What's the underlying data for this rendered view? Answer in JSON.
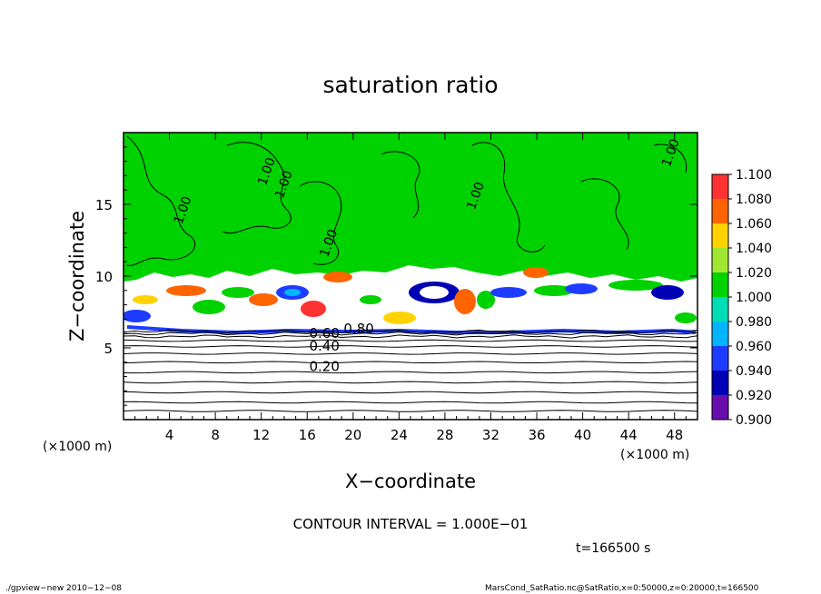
{
  "chart_data": {
    "type": "heatmap",
    "title": "saturation ratio",
    "xlabel": "X−coordinate",
    "ylabel": "Z−coordinate",
    "x_units": "(×1000 m)",
    "z_units": "(×1000 m)",
    "xlim": [
      0,
      50
    ],
    "ylim": [
      0,
      20
    ],
    "x_ticks": [
      4,
      8,
      12,
      16,
      20,
      24,
      28,
      32,
      36,
      40,
      44,
      48
    ],
    "y_ticks": [
      5,
      10,
      15
    ],
    "x_tick_labels": [
      "4",
      "8",
      "12",
      "16",
      "20",
      "24",
      "28",
      "32",
      "36",
      "40",
      "44",
      "48"
    ],
    "y_tick_labels": [
      "5",
      "10",
      "15"
    ],
    "colorbar": {
      "levels": [
        0.9,
        0.92,
        0.94,
        0.96,
        0.98,
        1.0,
        1.02,
        1.04,
        1.06,
        1.08,
        1.1
      ],
      "tick_labels": [
        "0.900",
        "0.920",
        "0.940",
        "0.960",
        "0.980",
        "1.000",
        "1.020",
        "1.040",
        "1.060",
        "1.080",
        "1.100"
      ],
      "colors": [
        "#6a0dad",
        "#0000b4",
        "#1e3cff",
        "#00b4ff",
        "#00dcb4",
        "#00d200",
        "#a0e632",
        "#ffd200",
        "#ff6400",
        "#ff3232",
        "#ff9696"
      ]
    },
    "contour_lines_z": [
      0.6,
      1.2,
      1.9,
      2.6,
      3.3,
      4.0,
      4.6,
      5.1,
      5.5,
      5.8,
      6.0,
      6.15
    ],
    "contour_labels": [
      {
        "text": "1.00",
        "x": 5.5,
        "y": 14.5
      },
      {
        "text": "1.00",
        "x": 12.8,
        "y": 17.2
      },
      {
        "text": "1.00",
        "x": 14.3,
        "y": 16.3
      },
      {
        "text": "1.00",
        "x": 18.2,
        "y": 12.2
      },
      {
        "text": "1.00",
        "x": 31.0,
        "y": 15.5
      },
      {
        "text": "1.00",
        "x": 48.0,
        "y": 18.5
      },
      {
        "text": "0.60",
        "x": 17.5,
        "y": 5.7
      },
      {
        "text": "0.80",
        "x": 20.5,
        "y": 6.0
      },
      {
        "text": "0.40",
        "x": 17.5,
        "y": 4.8
      },
      {
        "text": "0.20",
        "x": 17.5,
        "y": 3.4
      }
    ],
    "contour_interval_text": "CONTOUR INTERVAL = 1.000E−01",
    "time_label": "t=166500 s"
  },
  "footer": {
    "left": "./gpview−new   2010−12−08",
    "right": "MarsCond_SatRatio.nc@SatRatio,x=0:50000,z=0:20000,t=166500"
  }
}
